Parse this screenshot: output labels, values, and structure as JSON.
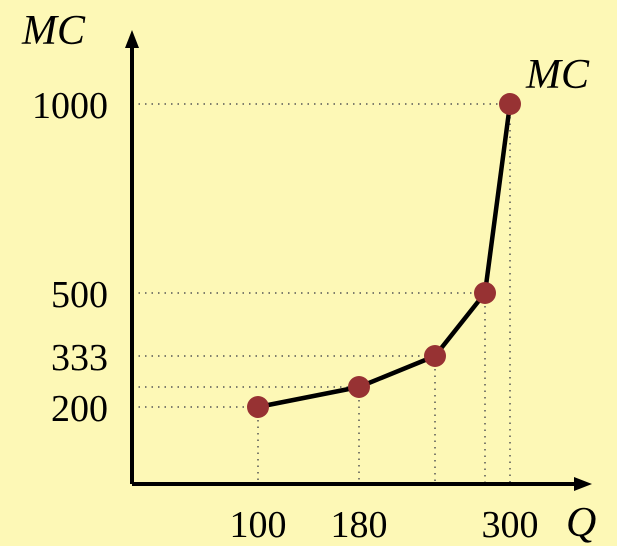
{
  "chart_data": {
    "type": "line",
    "title": "",
    "xlabel": "Q",
    "ylabel": "MC",
    "series": [
      {
        "name": "MC",
        "color": "#973233",
        "points": [
          {
            "x": 100,
            "y": 200
          },
          {
            "x": 180,
            "y": 255
          },
          {
            "x": 240,
            "y": 333
          },
          {
            "x": 280,
            "y": 500
          },
          {
            "x": 300,
            "y": 1000
          }
        ]
      }
    ],
    "x_ticks": [
      {
        "value": 100,
        "label": "100"
      },
      {
        "value": 180,
        "label": "180"
      },
      {
        "value": 300,
        "label": "300"
      }
    ],
    "y_ticks": [
      {
        "value": 200,
        "label": "200"
      },
      {
        "value": 333,
        "label": "333"
      },
      {
        "value": 500,
        "label": "500"
      },
      {
        "value": 1000,
        "label": "1000"
      }
    ],
    "xlim": [
      0,
      340
    ],
    "ylim": [
      0,
      1200
    ],
    "guide_lines": "dotted",
    "grid": false,
    "legend": "none",
    "colors": {
      "background": "#fdf8b6",
      "axis": "#000000",
      "line": "#000000",
      "marker": "#973233"
    }
  }
}
